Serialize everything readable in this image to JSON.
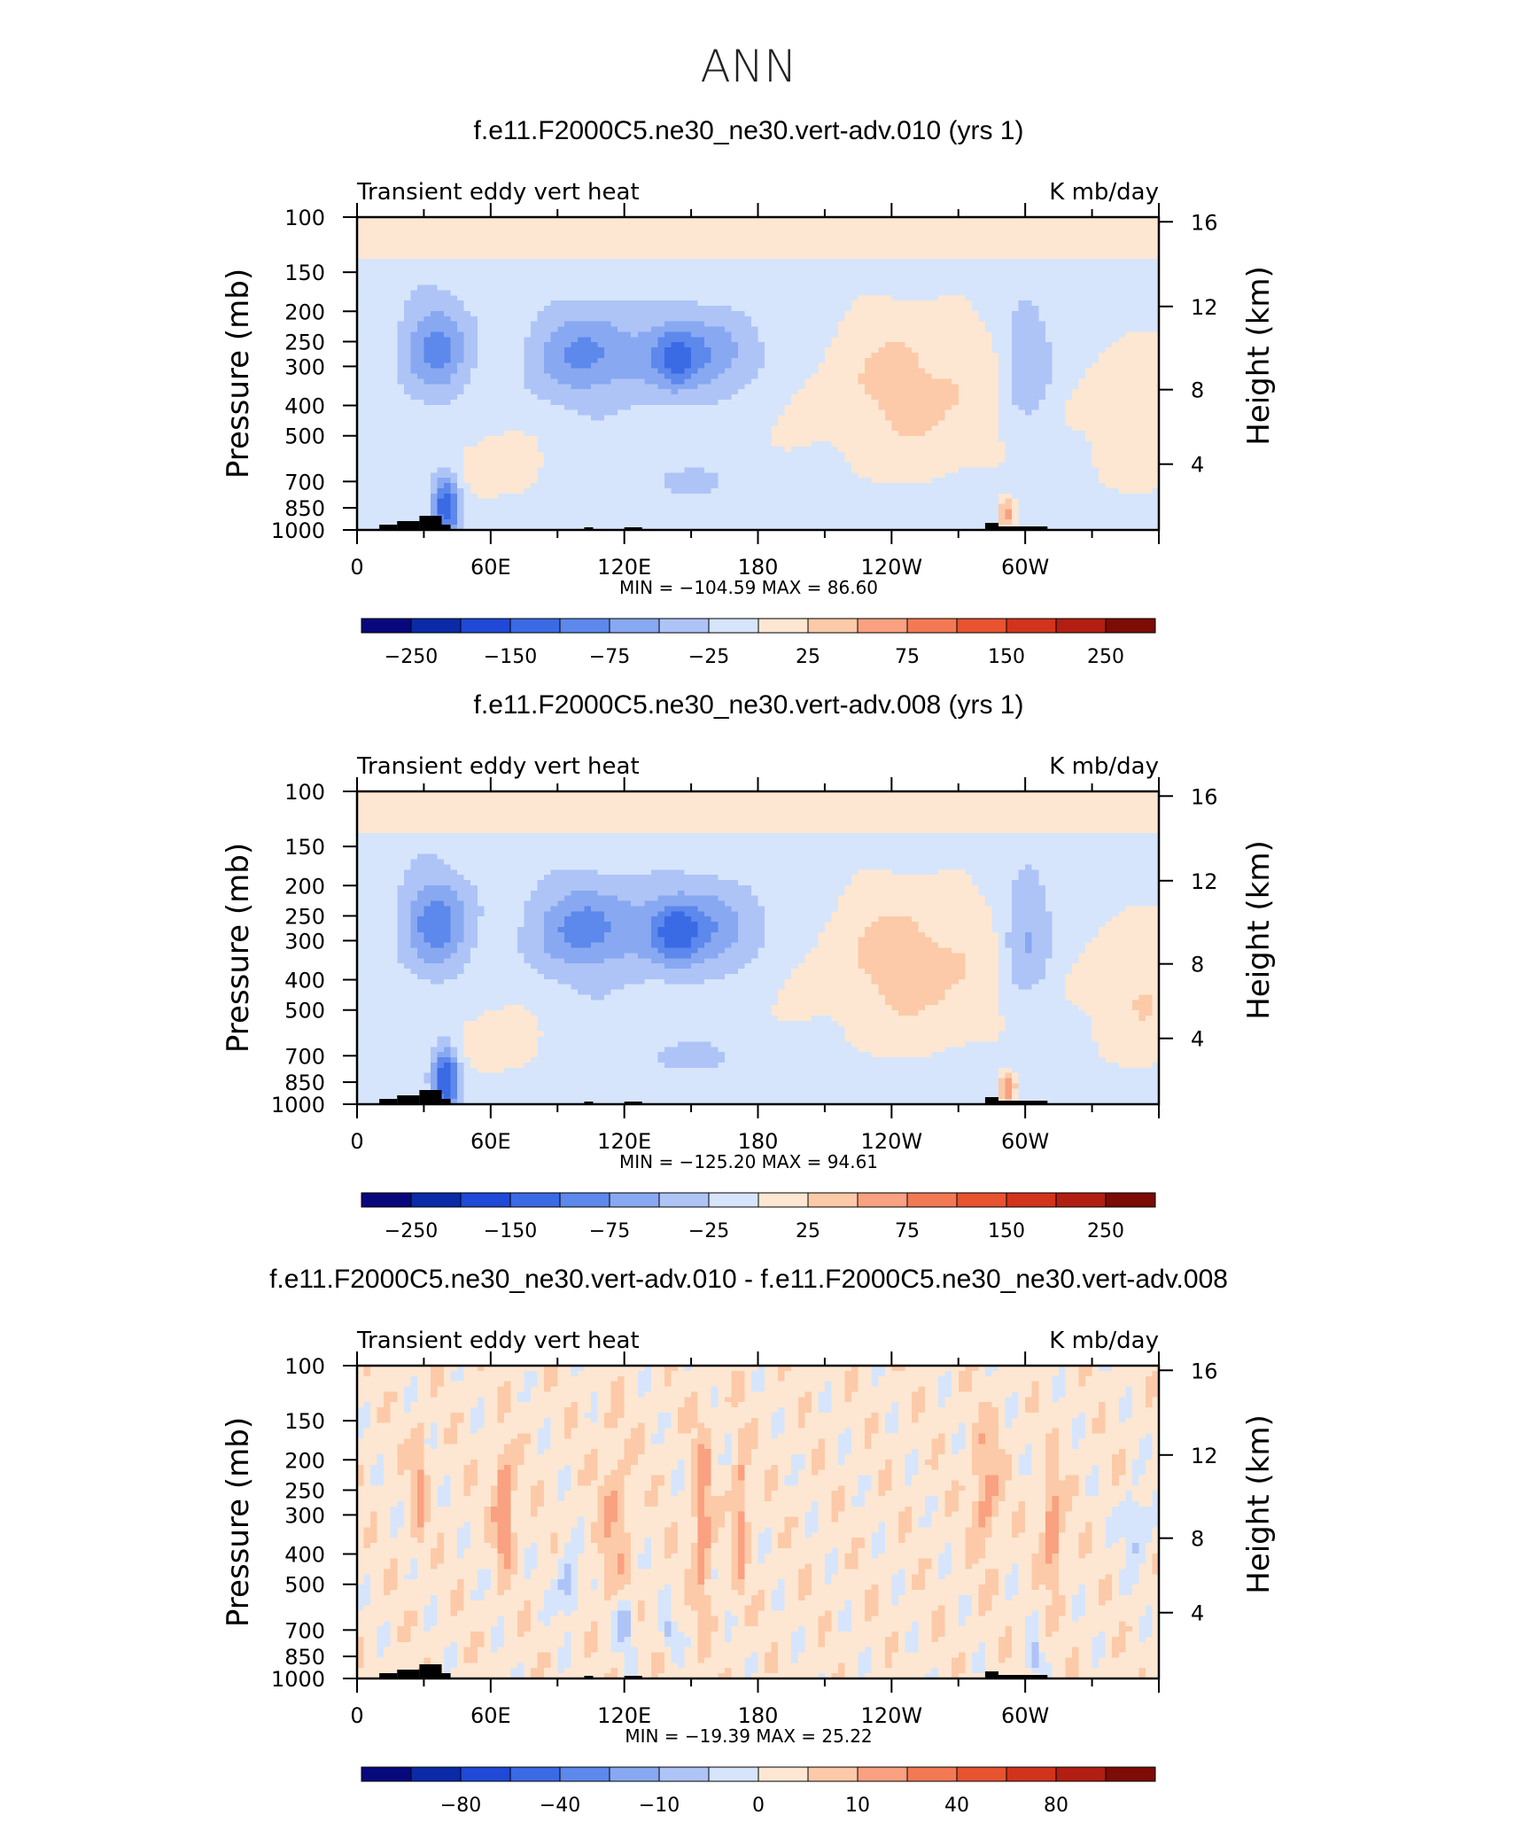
{
  "figure": {
    "title": "ANN"
  },
  "chart_data": [
    {
      "type": "heatmap",
      "title": "f.e11.F2000C5.ne30_ne30.vert-adv.010 (yrs 1)",
      "left_label": "Transient eddy vert heat",
      "right_label": "K mb/day",
      "ylabel": "Pressure (mb)",
      "ylabel_right": "Height (km)",
      "x_ticks": [
        "0",
        "60E",
        "120E",
        "180",
        "120W",
        "60W"
      ],
      "y_ticks": [
        "100",
        "150",
        "200",
        "250",
        "300",
        "400",
        "500",
        "700",
        "850",
        "1000"
      ],
      "y2_ticks": [
        "16",
        "12",
        "8",
        "4"
      ],
      "ylim": [
        1000,
        100
      ],
      "stats_text": "MIN = −104.59   MAX =   86.60",
      "min": -104.59,
      "max": 86.6,
      "colorbar_labels": [
        "−250",
        "−150",
        "−75",
        "−25",
        "25",
        "75",
        "150",
        "250"
      ],
      "levels": [
        -300,
        -250,
        -200,
        -150,
        -100,
        -75,
        -50,
        -25,
        0,
        25,
        50,
        75,
        100,
        150,
        200,
        250,
        300
      ],
      "colors": [
        "#08087d",
        "#0a2aa8",
        "#1f49d6",
        "#3b6ae5",
        "#5d88ec",
        "#88a9f1",
        "#aec4f7",
        "#d6e5fb",
        "#fde7d2",
        "#fccaa8",
        "#f9a180",
        "#f37954",
        "#e85330",
        "#d2331c",
        "#b21e12",
        "#7d0b06"
      ]
    },
    {
      "type": "heatmap",
      "title": "f.e11.F2000C5.ne30_ne30.vert-adv.008 (yrs 1)",
      "left_label": "Transient eddy vert heat",
      "right_label": "K mb/day",
      "ylabel": "Pressure (mb)",
      "ylabel_right": "Height (km)",
      "x_ticks": [
        "0",
        "60E",
        "120E",
        "180",
        "120W",
        "60W"
      ],
      "y_ticks": [
        "100",
        "150",
        "200",
        "250",
        "300",
        "400",
        "500",
        "700",
        "850",
        "1000"
      ],
      "y2_ticks": [
        "16",
        "12",
        "8",
        "4"
      ],
      "ylim": [
        1000,
        100
      ],
      "stats_text": "MIN = −125.20   MAX =   94.61",
      "min": -125.2,
      "max": 94.61,
      "colorbar_labels": [
        "−250",
        "−150",
        "−75",
        "−25",
        "25",
        "75",
        "150",
        "250"
      ],
      "levels": [
        -300,
        -250,
        -200,
        -150,
        -100,
        -75,
        -50,
        -25,
        0,
        25,
        50,
        75,
        100,
        150,
        200,
        250,
        300
      ],
      "colors": [
        "#08087d",
        "#0a2aa8",
        "#1f49d6",
        "#3b6ae5",
        "#5d88ec",
        "#88a9f1",
        "#aec4f7",
        "#d6e5fb",
        "#fde7d2",
        "#fccaa8",
        "#f9a180",
        "#f37954",
        "#e85330",
        "#d2331c",
        "#b21e12",
        "#7d0b06"
      ]
    },
    {
      "type": "heatmap",
      "title": "f.e11.F2000C5.ne30_ne30.vert-adv.010 - f.e11.F2000C5.ne30_ne30.vert-adv.008",
      "left_label": "Transient eddy vert heat",
      "right_label": "K mb/day",
      "ylabel": "Pressure (mb)",
      "ylabel_right": "Height (km)",
      "x_ticks": [
        "0",
        "60E",
        "120E",
        "180",
        "120W",
        "60W"
      ],
      "y_ticks": [
        "100",
        "150",
        "200",
        "250",
        "300",
        "400",
        "500",
        "700",
        "850",
        "1000"
      ],
      "y2_ticks": [
        "16",
        "12",
        "8",
        "4"
      ],
      "ylim": [
        1000,
        100
      ],
      "stats_text": "MIN = −19.39   MAX =   25.22",
      "min": -19.39,
      "max": 25.22,
      "colorbar_labels": [
        "−80",
        "−40",
        "−10",
        "0",
        "10",
        "40",
        "80"
      ],
      "levels": [
        -120,
        -100,
        -80,
        -60,
        -40,
        -20,
        -10,
        -5,
        0,
        5,
        10,
        20,
        40,
        60,
        80,
        100,
        120
      ],
      "colors": [
        "#08087d",
        "#0a2aa8",
        "#1f49d6",
        "#3b6ae5",
        "#5d88ec",
        "#88a9f1",
        "#aec4f7",
        "#d6e5fb",
        "#fde7d2",
        "#fccaa8",
        "#f9a180",
        "#f37954",
        "#e85330",
        "#d2331c",
        "#b21e12",
        "#7d0b06"
      ]
    }
  ]
}
